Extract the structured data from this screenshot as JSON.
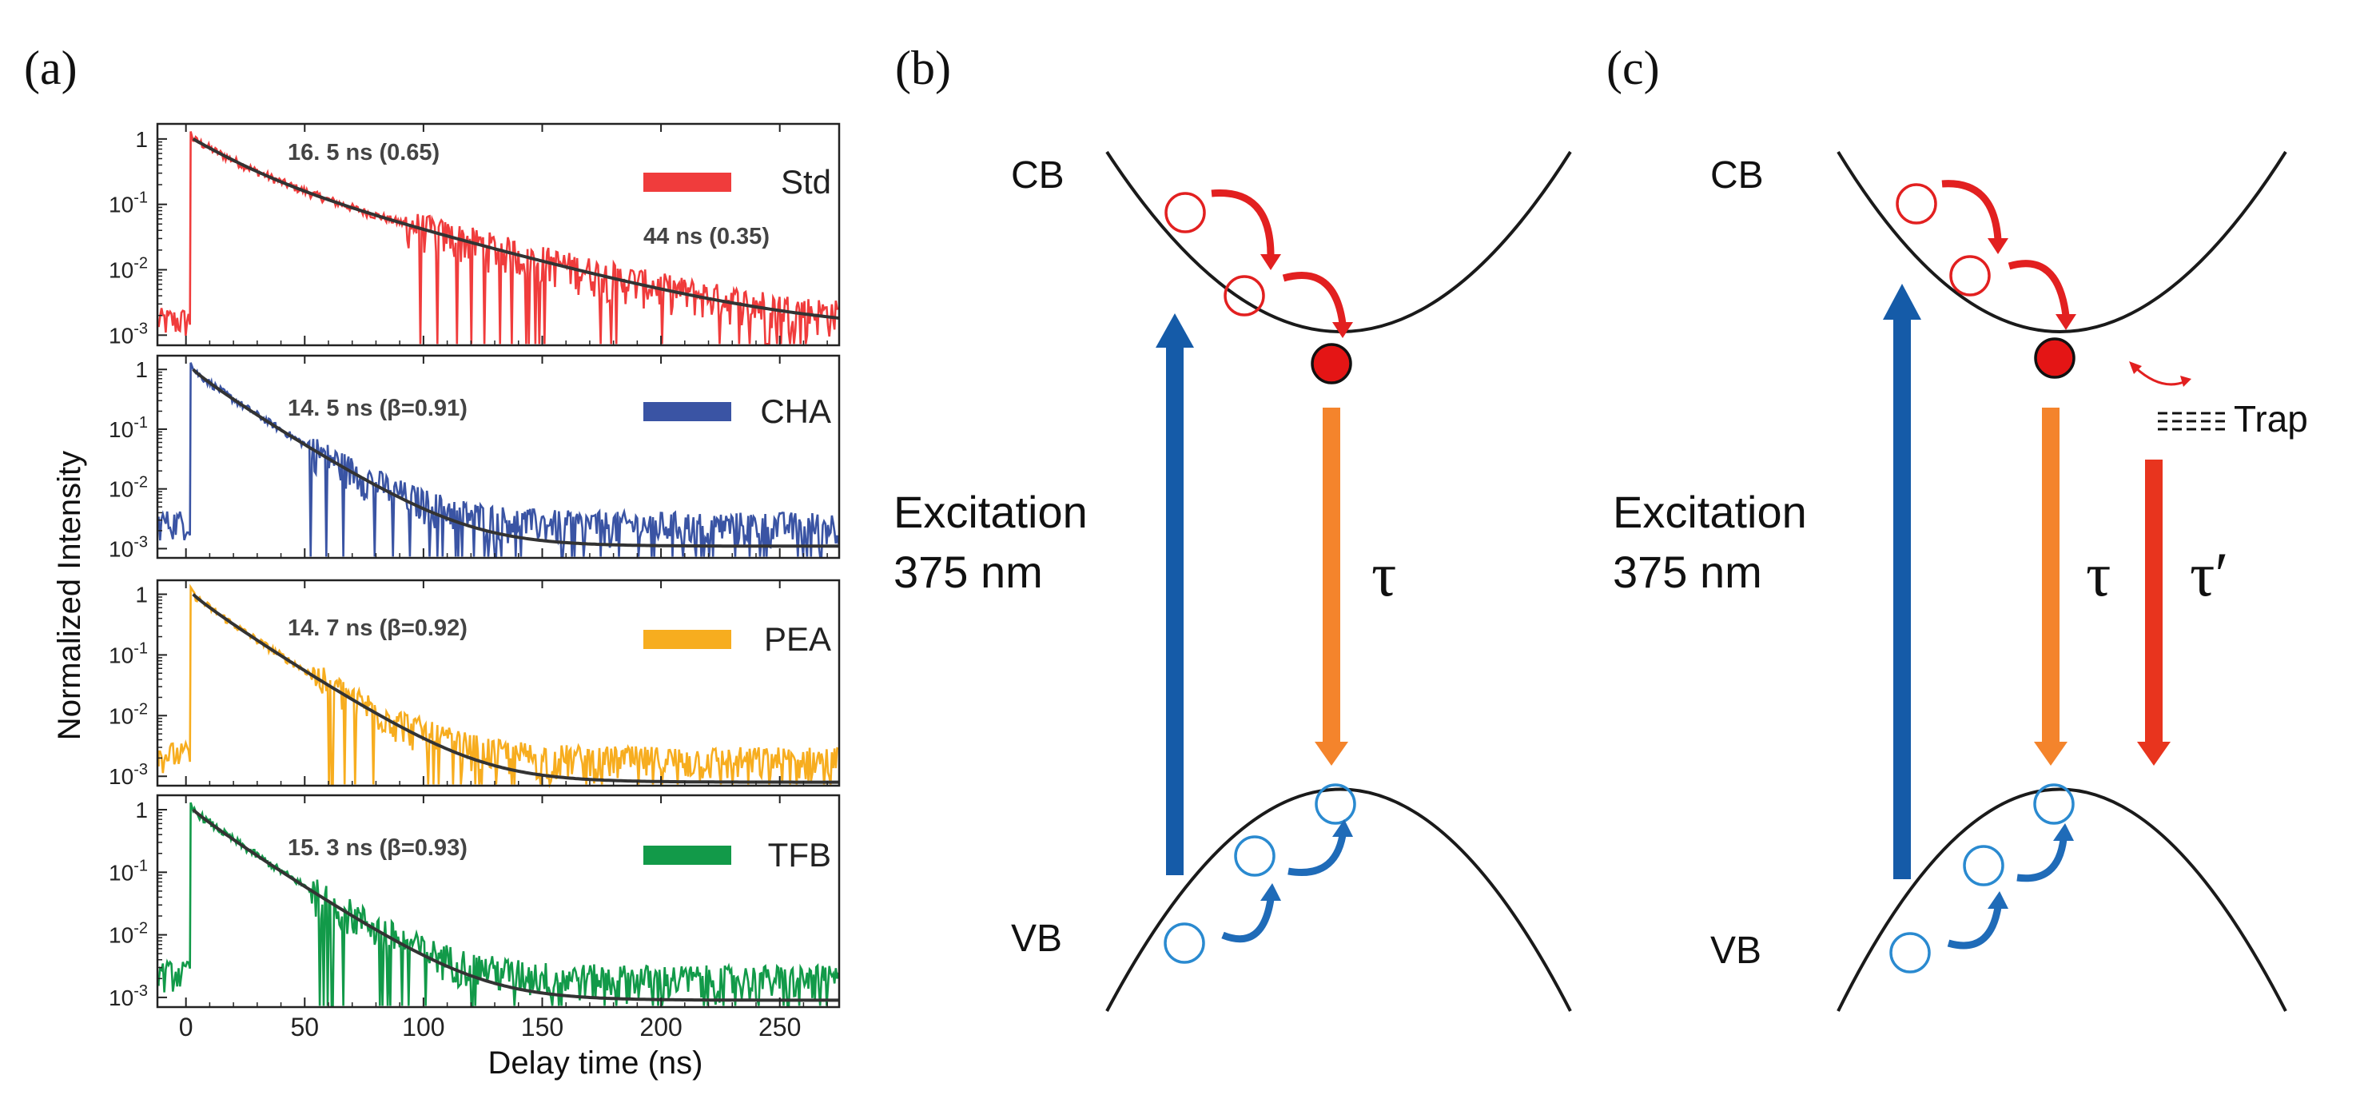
{
  "panel_labels": {
    "a": "(a)",
    "b": "(b)",
    "c": "(c)"
  },
  "colors": {
    "Std": "#f03c3c",
    "CHA": "#3a54a4",
    "PEA": "#f7ad1f",
    "TFB": "#129a49",
    "fit": "#333333",
    "excitation": "#155ba8",
    "decay": "#f4842c",
    "trap_decay": "#e8341e",
    "electron": "#e22020",
    "hole": "#2a8ad0",
    "band": "#1a1a1a"
  },
  "chart_data": {
    "type": "line",
    "title": "",
    "xlabel": "Delay time (ns)",
    "ylabel": "Normalized Intensity",
    "xlim": [
      -12,
      275
    ],
    "xticks": [
      0,
      50,
      100,
      150,
      200,
      250
    ],
    "xtick_labels": [
      "0",
      "50",
      "100",
      "150",
      "200",
      "250"
    ],
    "ylim": [
      0.0007,
      1.7
    ],
    "yticks": [
      1,
      0.1,
      0.01,
      0.001
    ],
    "ytick_labels": [
      "1",
      "10^-1",
      "10^-2",
      "10^-3"
    ],
    "yscale": "log",
    "series": [
      {
        "name": "Std",
        "legend": "Std",
        "fit_type": "biexponential",
        "annotations": [
          "16. 5 ns (0.65)",
          "44 ns (0.35)"
        ],
        "tau_ns": [
          16.5,
          44
        ],
        "amplitudes": [
          0.65,
          0.35
        ],
        "baseline": 0.0013,
        "fit_floor": 0.0011,
        "noise_level": 0.0022,
        "peak_x": 3,
        "pre_level": 0.0013
      },
      {
        "name": "CHA",
        "legend": "CHA",
        "fit_type": "stretched_exponential",
        "annotations": [
          "14. 5 ns (β=0.91)"
        ],
        "tau_ns": 14.5,
        "beta": 0.91,
        "baseline": 0.0024,
        "fit_floor": 0.0011,
        "noise_level": 0.0025,
        "peak_x": 3,
        "pre_level": 0.0022
      },
      {
        "name": "PEA",
        "legend": "PEA",
        "fit_type": "stretched_exponential",
        "annotations": [
          "14. 7 ns (β=0.92)"
        ],
        "tau_ns": 14.7,
        "beta": 0.92,
        "baseline": 0.0018,
        "fit_floor": 0.0008,
        "noise_level": 0.0015,
        "peak_x": 3,
        "pre_level": 0.0018
      },
      {
        "name": "TFB",
        "legend": "TFB",
        "fit_type": "stretched_exponential",
        "annotations": [
          "15. 3 ns (β=0.93)"
        ],
        "tau_ns": 15.3,
        "beta": 0.93,
        "baseline": 0.0019,
        "fit_floor": 0.0009,
        "noise_level": 0.0019,
        "peak_x": 3,
        "pre_level": 0.0019
      }
    ]
  },
  "diagram_b": {
    "cb_label": "CB",
    "vb_label": "VB",
    "excitation_label": "Excitation",
    "wavelength_label": "375 nm",
    "tau_label": "τ"
  },
  "diagram_c": {
    "cb_label": "CB",
    "vb_label": "VB",
    "excitation_label": "Excitation",
    "wavelength_label": "375 nm",
    "tau_label": "τ",
    "tau_prime_label": "τ′",
    "trap_label": "Trap"
  }
}
